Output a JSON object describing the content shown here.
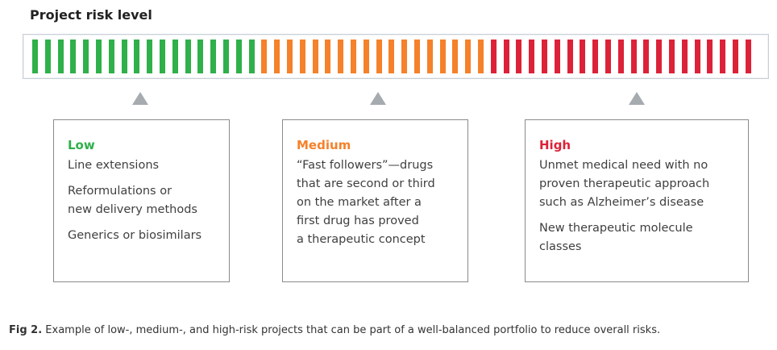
{
  "title": "Project risk level",
  "meter": {
    "segments": {
      "low": 18,
      "medium": 18,
      "high": 21
    },
    "colors": {
      "low": "#2fb04a",
      "medium": "#f5812a",
      "high": "#dc2238"
    }
  },
  "categories": [
    {
      "heading": "Low",
      "color": "#2fb04a",
      "items": [
        "Line extensions",
        "Reformulations or\nnew delivery methods",
        "Generics or biosimilars"
      ]
    },
    {
      "heading": "Medium",
      "color": "#f5812a",
      "items": [
        "“Fast followers”—drugs\nthat are second or third\non the market after a\nfirst drug has proved\na therapeutic concept"
      ]
    },
    {
      "heading": "High",
      "color": "#dc2238",
      "items": [
        "Unmet medical need with no\nproven therapeutic approach\nsuch as Alzheimer’s disease",
        "New therapeutic molecule\nclasses"
      ]
    }
  ],
  "caption": {
    "label": "Fig 2.",
    "text": " Example of low-, medium-, and high-risk projects that can be part of a well-balanced portfolio to reduce overall risks."
  }
}
